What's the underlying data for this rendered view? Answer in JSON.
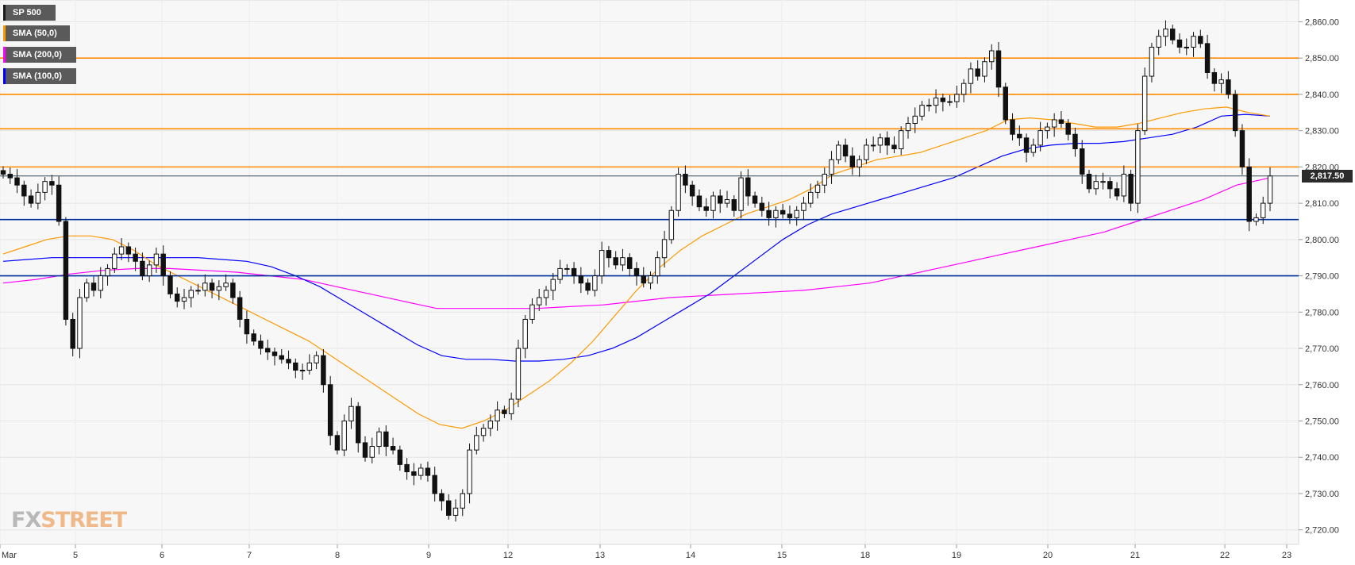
{
  "chart_data": {
    "type": "candlestick",
    "title": "SP 500",
    "ylim": [
      2716,
      2866
    ],
    "yticks": [
      2720,
      2730,
      2740,
      2750,
      2760,
      2770,
      2780,
      2790,
      2800,
      2810,
      2820,
      2830,
      2840,
      2850,
      2860
    ],
    "ytick_labels": [
      "2,720.00",
      "2,730.00",
      "2,740.00",
      "2,750.00",
      "2,760.00",
      "2,770.00",
      "2,780.00",
      "2,790.00",
      "2,800.00",
      "2,810.00",
      "2,820.00",
      "2,830.00",
      "2,840.00",
      "2,850.00",
      "2,860.00"
    ],
    "xticks": [
      "Mar",
      "5",
      "6",
      "7",
      "8",
      "9",
      "12",
      "13",
      "14",
      "15",
      "18",
      "19",
      "20",
      "21",
      "22",
      "23"
    ],
    "current_price": 2817.5,
    "current_price_label": "2,817.50",
    "grid": true,
    "legend_position": "top-left",
    "legend": [
      {
        "name": "SP 500",
        "color": "#1a1a1a"
      },
      {
        "name": "SMA (50,0)",
        "color": "#ff9900"
      },
      {
        "name": "SMA (200,0)",
        "color": "#ff00ff"
      },
      {
        "name": "SMA (100,0)",
        "color": "#0000ff"
      }
    ],
    "resistance_levels": [
      2850,
      2840,
      2830.5,
      2820
    ],
    "support_levels": [
      2805.5,
      2790
    ],
    "level_colors": {
      "resistance": "#ff8c00",
      "support": "#00309c"
    },
    "close_series": [
      2818,
      2817,
      2815,
      2812,
      2810,
      2813,
      2816,
      2815,
      2805,
      2778,
      2770,
      2784,
      2788,
      2786,
      2790,
      2792,
      2796,
      2798,
      2796,
      2794,
      2790,
      2793,
      2796,
      2790,
      2785,
      2783,
      2784,
      2786,
      2786,
      2788,
      2786,
      2787,
      2788,
      2784,
      2778,
      2774,
      2772,
      2770,
      2769,
      2768,
      2767,
      2766,
      2764,
      2764,
      2766,
      2768,
      2760,
      2746,
      2742,
      2750,
      2754,
      2744,
      2740,
      2743,
      2747,
      2743,
      2742,
      2738,
      2736,
      2735,
      2737,
      2735,
      2730,
      2728,
      2724,
      2726,
      2730,
      2742,
      2746,
      2748,
      2750,
      2753,
      2752,
      2756,
      2770,
      2778,
      2782,
      2784,
      2786,
      2789,
      2792,
      2792,
      2790,
      2788,
      2786,
      2790,
      2797,
      2795,
      2793,
      2795,
      2792,
      2790,
      2788,
      2790,
      2795,
      2800,
      2808,
      2818,
      2815,
      2812,
      2809,
      2808,
      2812,
      2810,
      2811,
      2808,
      2817,
      2812,
      2810,
      2808,
      2806,
      2808,
      2807,
      2806,
      2808,
      2810,
      2813,
      2815,
      2818,
      2822,
      2826,
      2823,
      2820,
      2822,
      2826,
      2826,
      2828,
      2826,
      2825,
      2830,
      2832,
      2834,
      2837,
      2837,
      2839,
      2838,
      2838,
      2840,
      2843,
      2847,
      2845,
      2849,
      2852,
      2842,
      2833,
      2829,
      2828,
      2824,
      2826,
      2830,
      2831,
      2833,
      2832,
      2829,
      2825,
      2818,
      2814,
      2816,
      2816,
      2814,
      2812,
      2818,
      2810,
      2830,
      2845,
      2853,
      2856,
      2858,
      2855,
      2853,
      2853,
      2856,
      2854,
      2846,
      2843,
      2844,
      2840,
      2830,
      2820,
      2805,
      2806,
      2810,
      2817.5
    ],
    "sma_50": [
      2796,
      2798,
      2800,
      2801,
      2801,
      2800,
      2797,
      2793,
      2790,
      2787,
      2784,
      2781,
      2778,
      2775,
      2772,
      2768,
      2764,
      2760,
      2756,
      2752,
      2749,
      2748,
      2750,
      2753,
      2757,
      2761,
      2766,
      2772,
      2779,
      2786,
      2792,
      2797,
      2801,
      2804,
      2807,
      2809,
      2811,
      2814,
      2818,
      2820,
      2822,
      2823,
      2824,
      2826,
      2828,
      2830,
      2833,
      2833.5,
      2833,
      2832,
      2831,
      2831,
      2832,
      2833.5,
      2835,
      2836,
      2836.5,
      2835,
      2834
    ],
    "sma_100": [
      2794,
      2794.5,
      2795,
      2795,
      2795,
      2795,
      2795,
      2795,
      2795,
      2794.5,
      2794,
      2792.5,
      2790,
      2787,
      2783,
      2779,
      2775,
      2771,
      2768,
      2767,
      2767,
      2766.5,
      2766.5,
      2767,
      2768,
      2770,
      2773,
      2777,
      2781,
      2785,
      2790,
      2795,
      2800,
      2804,
      2807,
      2809,
      2811,
      2813,
      2815,
      2817,
      2820,
      2823,
      2825,
      2826,
      2826.5,
      2826.5,
      2827,
      2828,
      2829,
      2831,
      2834,
      2834.5,
      2834
    ],
    "sma_200": [
      2788,
      2789,
      2790.5,
      2791.5,
      2792,
      2792,
      2791.5,
      2791,
      2790,
      2789,
      2787,
      2785,
      2783,
      2781,
      2781,
      2781,
      2781,
      2781.5,
      2782,
      2783,
      2784,
      2784.5,
      2785,
      2785.5,
      2786,
      2787,
      2788,
      2790,
      2792,
      2794,
      2796,
      2798,
      2800,
      2802,
      2805,
      2808,
      2811,
      2815,
      2817
    ]
  },
  "watermark": {
    "fx": "FX",
    "street": "STREET"
  }
}
